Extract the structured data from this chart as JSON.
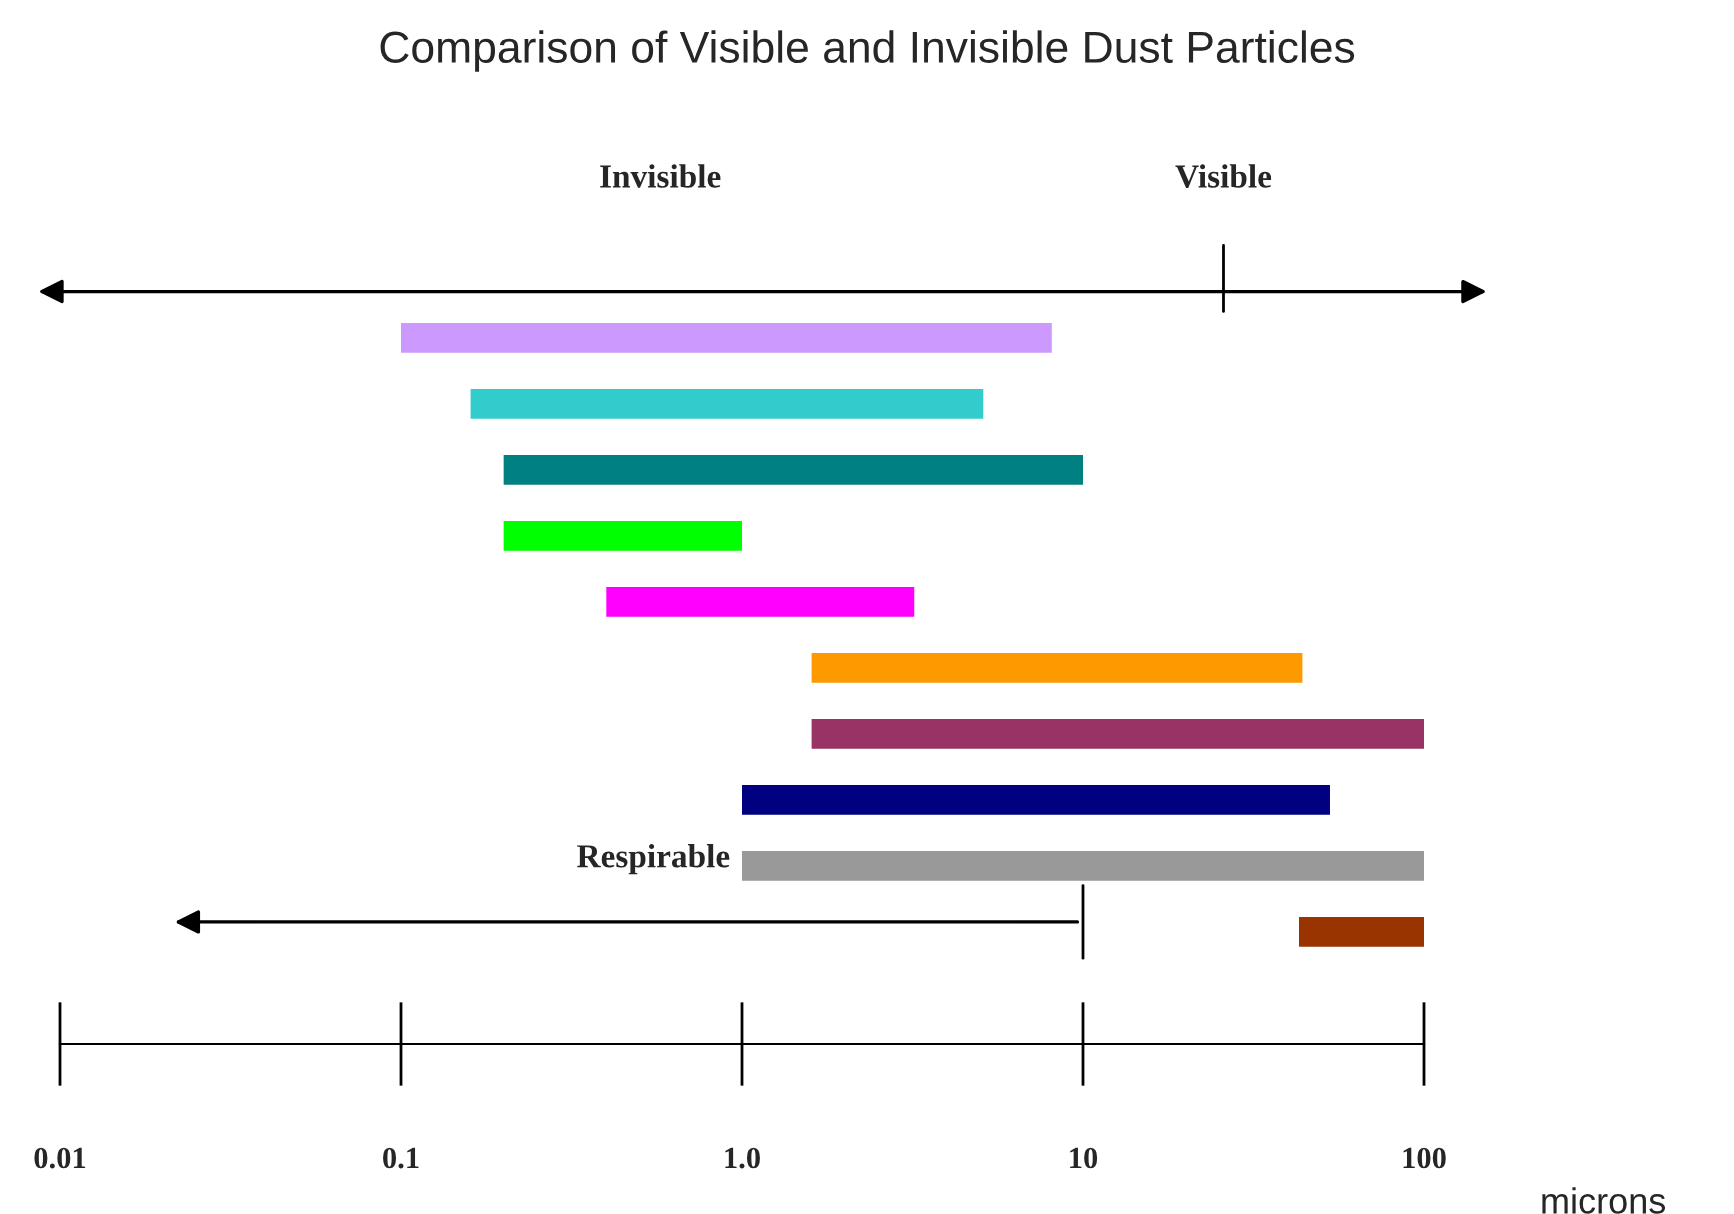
{
  "chart_data": {
    "type": "bar",
    "orientation": "horizontal",
    "title": "Comparison of Visible and Invisible Dust Particles",
    "xlabel": "microns",
    "categories": [
      null,
      null,
      null,
      null,
      null,
      null,
      null,
      null,
      null,
      null
    ],
    "base": [
      0.1,
      0.16,
      0.2,
      0.2,
      0.4,
      1.6,
      1.6,
      1,
      1,
      43
    ],
    "values": [
      8.0,
      4.94,
      9.8,
      0.8,
      2.8,
      42.4,
      98.4,
      52,
      99,
      57
    ],
    "colors": [
      "#cc99ff",
      "#33cccc",
      "#008080",
      "#00ff00",
      "#ff00ff",
      "#ff9900",
      "#993366",
      "#000080",
      "#999999",
      "#993300"
    ],
    "log": "x",
    "xlim": [
      0.01,
      100
    ],
    "xticks": [
      0.01,
      0.1,
      {
        "value": 1,
        "label": "1.0"
      },
      10,
      100
    ],
    "ref_lines": [
      {
        "axis": "x",
        "value": 10,
        "label": "Respirable"
      }
    ],
    "annotations": [
      "Invisible",
      "Visible"
    ],
    "grid": false,
    "legend": false
  }
}
